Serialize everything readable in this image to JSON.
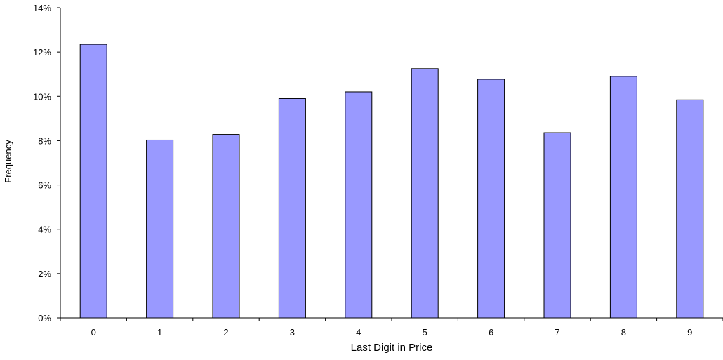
{
  "chart_data": {
    "type": "bar",
    "title": "",
    "xlabel": "Last Digit in Price",
    "ylabel": "Frequency",
    "categories": [
      "0",
      "1",
      "2",
      "3",
      "4",
      "5",
      "6",
      "7",
      "8",
      "9"
    ],
    "values": [
      12.35,
      8.03,
      8.28,
      9.9,
      10.2,
      11.25,
      10.77,
      8.36,
      10.9,
      9.84
    ],
    "value_unit": "%",
    "ylim": [
      0,
      14
    ],
    "yticks": [
      "0%",
      "2%",
      "4%",
      "6%",
      "8%",
      "10%",
      "12%",
      "14%"
    ],
    "grid": false,
    "legend": "none",
    "bar_color": "#9999ff",
    "bar_edge_color": "#000000"
  }
}
